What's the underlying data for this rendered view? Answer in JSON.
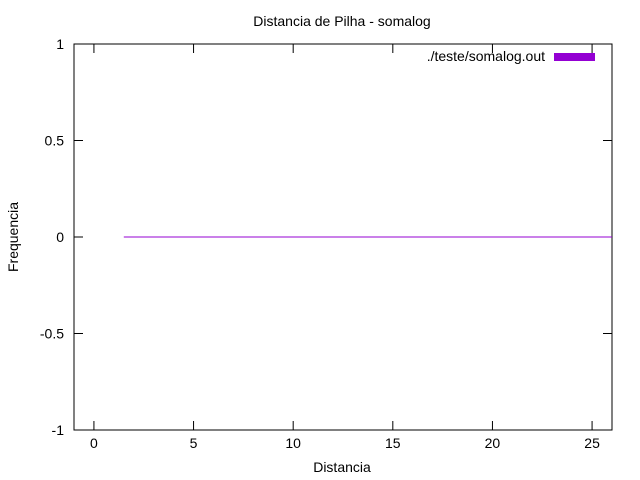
{
  "chart_data": {
    "type": "line",
    "title": "Distancia de Pilha - somalog",
    "xlabel": "Distancia",
    "ylabel": "Frequencia",
    "xlim": [
      -1,
      26
    ],
    "ylim": [
      -1,
      1
    ],
    "xticks": [
      0,
      5,
      10,
      15,
      20,
      25
    ],
    "yticks": [
      -1,
      -0.5,
      0,
      0.5,
      1
    ],
    "xtick_labels": [
      "0",
      "5",
      "10",
      "15",
      "20",
      "25"
    ],
    "ytick_labels": [
      "-1",
      "-0.5",
      "0",
      "0.5",
      "1"
    ],
    "grid": false,
    "legend_position": "top-right",
    "series": [
      {
        "name": "./teste/somalog.out",
        "color": "#9400d3",
        "x": [
          1.5,
          26
        ],
        "y": [
          0,
          0
        ]
      }
    ]
  }
}
